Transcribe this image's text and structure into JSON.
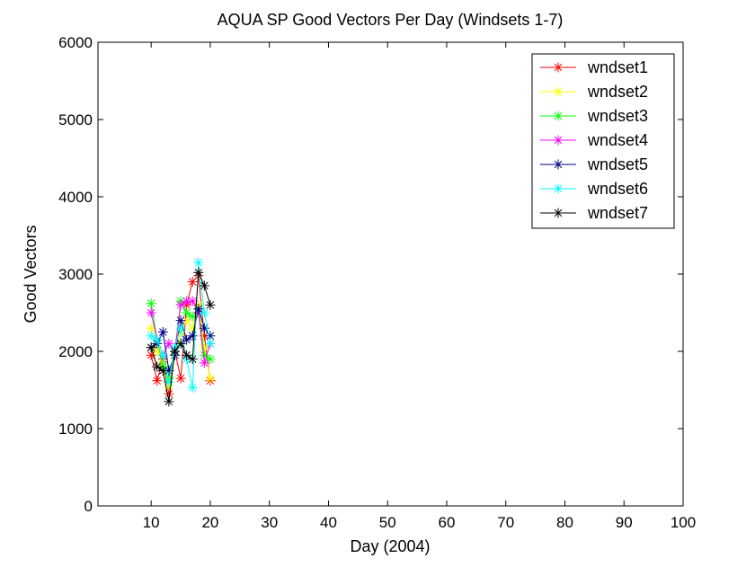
{
  "chart_data": {
    "type": "line",
    "title": "AQUA SP Good Vectors Per Day (Windsets 1-7)",
    "xlabel": "Day (2004)",
    "ylabel": "Good Vectors",
    "xlim": [
      1,
      100
    ],
    "ylim": [
      0,
      6000
    ],
    "xticks": [
      10,
      20,
      30,
      40,
      50,
      60,
      70,
      80,
      90,
      100
    ],
    "yticks": [
      0,
      1000,
      2000,
      3000,
      4000,
      5000,
      6000
    ],
    "grid": false,
    "legend_position": "top-right",
    "marker": "asterisk",
    "series": [
      {
        "name": "wndset1",
        "color": "#ff0000",
        "x": [
          10,
          11,
          12,
          13,
          14,
          15,
          16,
          17,
          18,
          19,
          20
        ],
        "y": [
          1950,
          1620,
          1900,
          1450,
          2000,
          1650,
          2600,
          2900,
          2980,
          2200,
          1620
        ]
      },
      {
        "name": "wndset2",
        "color": "#ffff00",
        "x": [
          10,
          11,
          12,
          13,
          14,
          15,
          16,
          17,
          18,
          19,
          20
        ],
        "y": [
          2300,
          2000,
          1850,
          1550,
          1950,
          2250,
          2400,
          2300,
          2600,
          2050,
          1650
        ]
      },
      {
        "name": "wndset3",
        "color": "#00ff00",
        "x": [
          10,
          11,
          12,
          13,
          14,
          15,
          16,
          17,
          18,
          19,
          20
        ],
        "y": [
          2620,
          2150,
          1800,
          1650,
          2000,
          2650,
          2500,
          2450,
          2550,
          1950,
          1900
        ]
      },
      {
        "name": "wndset4",
        "color": "#ff00ff",
        "x": [
          10,
          11,
          12,
          13,
          14,
          15,
          16,
          17,
          18,
          19,
          20
        ],
        "y": [
          2500,
          2150,
          1950,
          2100,
          2000,
          2600,
          2650,
          2650,
          2500,
          1850,
          2100
        ]
      },
      {
        "name": "wndset5",
        "color": "#000080",
        "x": [
          10,
          11,
          12,
          13,
          14,
          15,
          16,
          17,
          18,
          19,
          20
        ],
        "y": [
          2050,
          2100,
          2250,
          1750,
          1950,
          2400,
          2150,
          2200,
          2550,
          2300,
          2200
        ]
      },
      {
        "name": "wndset6",
        "color": "#00ffff",
        "x": [
          10,
          11,
          12,
          13,
          14,
          15,
          16,
          17,
          18,
          19,
          20
        ],
        "y": [
          2200,
          2150,
          1950,
          1600,
          2050,
          2300,
          1900,
          1530,
          3150,
          2500,
          2100
        ]
      },
      {
        "name": "wndset7",
        "color": "#000000",
        "x": [
          10,
          11,
          12,
          13,
          14,
          15,
          16,
          17,
          18,
          19,
          20
        ],
        "y": [
          2050,
          1800,
          1750,
          1350,
          2000,
          2100,
          1950,
          1900,
          3020,
          2850,
          2600
        ]
      }
    ]
  }
}
